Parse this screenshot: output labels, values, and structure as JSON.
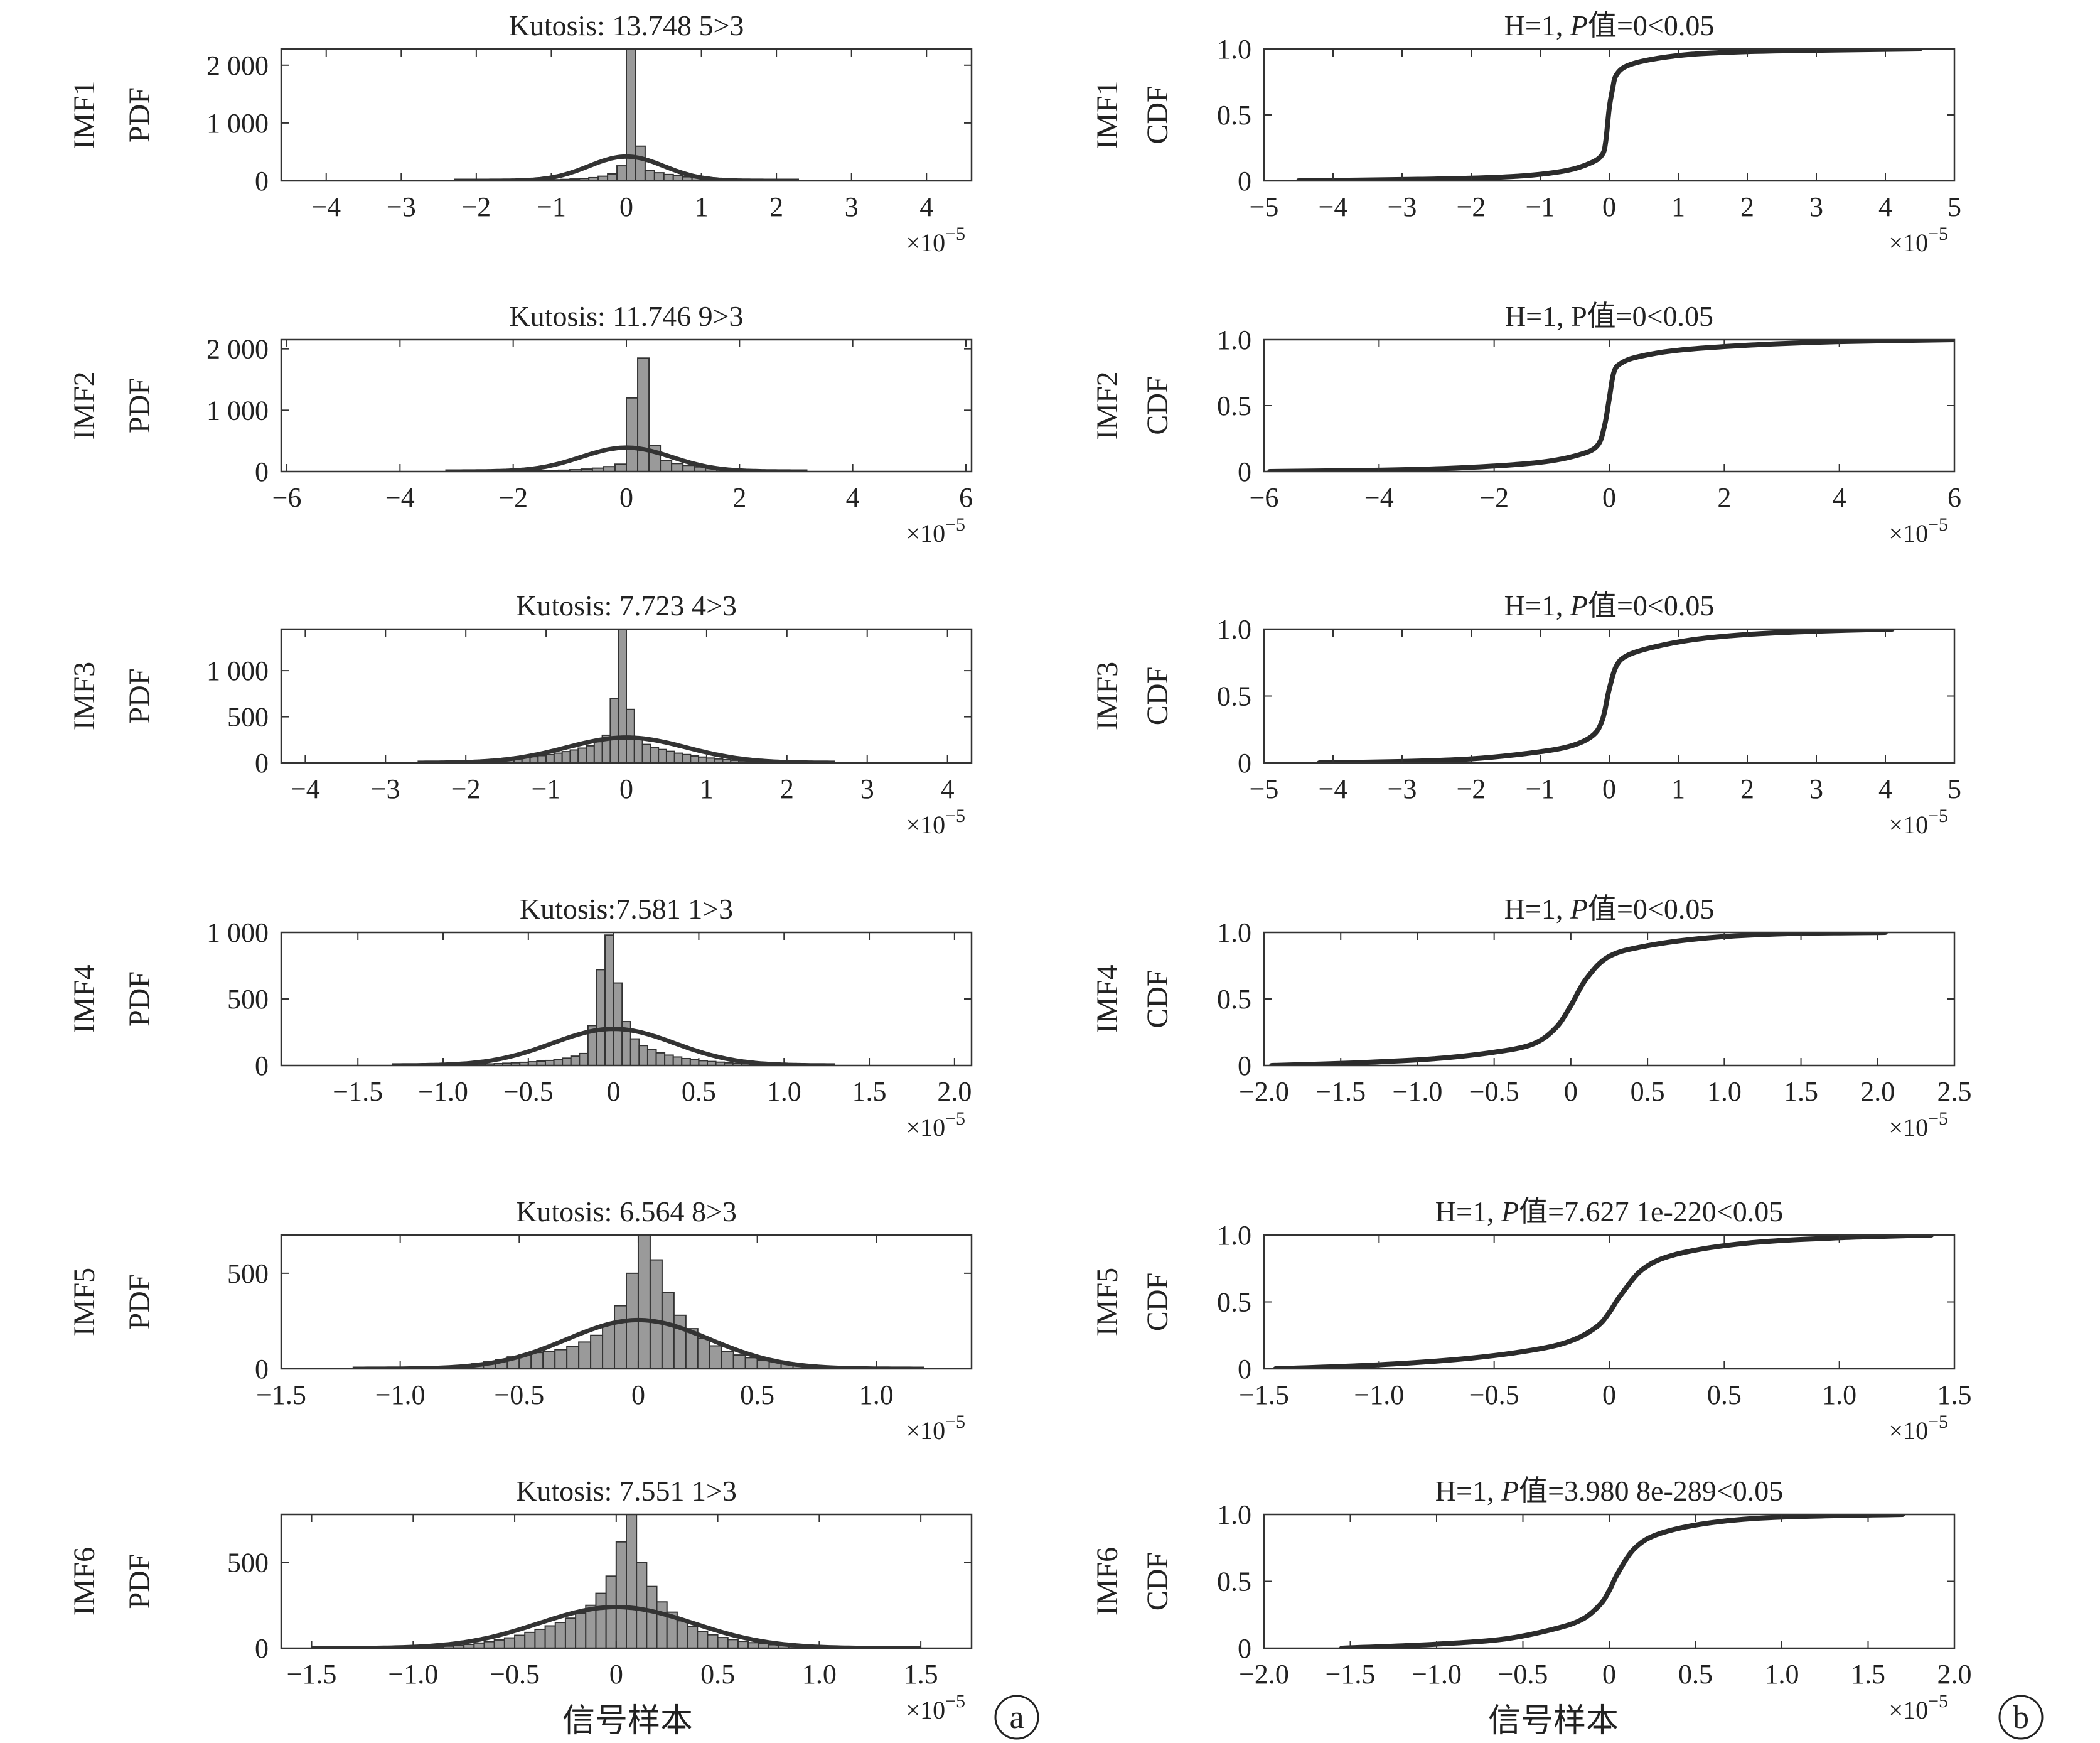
{
  "figure": {
    "x_axis_label": "信号样本",
    "panel_labels": [
      "a",
      "b"
    ],
    "x_exponent": "×10",
    "x_exponent_power": "−5"
  },
  "chart_data": [
    {
      "type": "bar",
      "column": "a",
      "imf": "IMF1",
      "ylabel": "PDF",
      "title": "Kutosis: 13.748 5>3",
      "xlim": [
        -4.6,
        4.6
      ],
      "ylim": [
        0,
        2280
      ],
      "xticks": [
        -4,
        -3,
        -2,
        -1,
        0,
        1,
        2,
        3,
        4
      ],
      "xtick_labels": [
        "−4",
        "−3",
        "−2",
        "−1",
        "0",
        "1",
        "2",
        "3",
        "4"
      ],
      "yticks": [
        0,
        1000,
        2000
      ],
      "ytick_labels": [
        "0",
        "1 000",
        "2 000"
      ],
      "hist": {
        "start": -2.0,
        "width": 0.125,
        "values": [
          2,
          3,
          4,
          6,
          8,
          10,
          13,
          16,
          20,
          25,
          32,
          40,
          55,
          80,
          120,
          260,
          2280,
          600,
          180,
          140,
          110,
          90,
          70,
          55,
          45,
          36,
          28,
          22,
          18,
          14,
          12,
          10
        ]
      },
      "fit": {
        "peak": 420,
        "sigma": 0.5,
        "range": [
          -2.3,
          2.3
        ]
      }
    },
    {
      "type": "bar",
      "column": "a",
      "imf": "IMF2",
      "ylabel": "PDF",
      "title": "Kutosis: 11.746 9>3",
      "xlim": [
        -6.1,
        6.1
      ],
      "ylim": [
        0,
        2150
      ],
      "xticks": [
        -6,
        -4,
        -2,
        0,
        2,
        4,
        6
      ],
      "xtick_labels": [
        "−6",
        "−4",
        "−2",
        "0",
        "2",
        "4",
        "6"
      ],
      "yticks": [
        0,
        1000,
        2000
      ],
      "ytick_labels": [
        "0",
        "1 000",
        "2 000"
      ],
      "hist": {
        "start": -2.6,
        "width": 0.2,
        "values": [
          2,
          3,
          4,
          6,
          8,
          12,
          16,
          22,
          30,
          40,
          55,
          80,
          120,
          1200,
          1850,
          420,
          180,
          130,
          100,
          75,
          55,
          40,
          30,
          22,
          16,
          12
        ]
      },
      "fit": {
        "peak": 390,
        "sigma": 0.8,
        "range": [
          -3.2,
          3.2
        ]
      }
    },
    {
      "type": "bar",
      "column": "a",
      "imf": "IMF3",
      "ylabel": "PDF",
      "title": "Kutosis: 7.723 4>3",
      "xlim": [
        -4.3,
        4.3
      ],
      "ylim": [
        0,
        1450
      ],
      "xticks": [
        -4,
        -3,
        -2,
        -1,
        0,
        1,
        2,
        3,
        4
      ],
      "xtick_labels": [
        "−4",
        "−3",
        "−2",
        "−1",
        "0",
        "1",
        "2",
        "3",
        "4"
      ],
      "yticks": [
        0,
        500,
        1000
      ],
      "ytick_labels": [
        "0",
        "500",
        "1 000"
      ],
      "hist": {
        "start": -2.6,
        "width": 0.1,
        "values": [
          3,
          4,
          5,
          7,
          9,
          11,
          14,
          18,
          22,
          27,
          33,
          40,
          48,
          57,
          67,
          78,
          90,
          105,
          122,
          140,
          160,
          185,
          230,
          300,
          700,
          1450,
          580,
          260,
          200,
          170,
          145,
          125,
          105,
          90,
          75,
          63,
          52,
          43,
          35,
          28,
          22,
          18,
          14,
          11,
          9,
          7,
          5,
          4,
          3,
          2,
          2,
          1
        ]
      },
      "fit": {
        "peak": 275,
        "sigma": 0.75,
        "range": [
          -2.6,
          2.6
        ]
      }
    },
    {
      "type": "bar",
      "column": "a",
      "imf": "IMF4",
      "ylabel": "PDF",
      "title": "Kutosis:7.581 1>3",
      "xlim": [
        -1.95,
        2.1
      ],
      "ylim": [
        0,
        1000
      ],
      "xticks": [
        -1.5,
        -1.0,
        -0.5,
        0,
        0.5,
        1.0,
        1.5,
        2.0
      ],
      "xtick_labels": [
        "−1.5",
        "−1.0",
        "−0.5",
        "0",
        "0.5",
        "1.0",
        "1.5",
        "2.0"
      ],
      "yticks": [
        0,
        500,
        1000
      ],
      "ytick_labels": [
        "0",
        "500",
        "1 000"
      ],
      "hist": {
        "start": -1.1,
        "width": 0.05,
        "values": [
          2,
          3,
          4,
          5,
          6,
          8,
          10,
          12,
          14,
          17,
          20,
          24,
          28,
          33,
          38,
          45,
          55,
          70,
          90,
          300,
          720,
          980,
          620,
          330,
          200,
          150,
          120,
          95,
          78,
          64,
          52,
          43,
          36,
          30,
          25,
          20,
          16,
          13,
          10,
          8,
          6,
          5,
          4,
          3
        ]
      },
      "fit": {
        "peak": 275,
        "sigma": 0.36,
        "range": [
          -1.3,
          1.3
        ]
      }
    },
    {
      "type": "bar",
      "column": "a",
      "imf": "IMF5",
      "ylabel": "PDF",
      "title": "Kutosis: 6.564 8>3",
      "xlim": [
        -1.5,
        1.4
      ],
      "ylim": [
        0,
        700
      ],
      "xticks": [
        -1.5,
        -1.0,
        -0.5,
        0,
        0.5,
        1.0
      ],
      "xtick_labels": [
        "−1.5",
        "−1.0",
        "−0.5",
        "0",
        "0.5",
        "1.0"
      ],
      "yticks": [
        0,
        500
      ],
      "ytick_labels": [
        "0",
        "500"
      ],
      "hist": {
        "start": -0.95,
        "width": 0.05,
        "values": [
          3,
          5,
          8,
          12,
          18,
          26,
          36,
          48,
          62,
          75,
          85,
          90,
          100,
          115,
          140,
          175,
          230,
          330,
          500,
          700,
          570,
          400,
          280,
          210,
          160,
          120,
          92,
          72,
          58,
          46,
          37,
          30,
          24,
          19,
          15,
          11,
          8,
          6
        ]
      },
      "fit": {
        "peak": 255,
        "sigma": 0.3,
        "range": [
          -1.2,
          1.2
        ]
      }
    },
    {
      "type": "bar",
      "column": "a",
      "imf": "IMF6",
      "ylabel": "PDF",
      "title": "Kutosis: 7.551 1>3",
      "xlim": [
        -1.65,
        1.75
      ],
      "ylim": [
        0,
        780
      ],
      "xticks": [
        -1.5,
        -1.0,
        -0.5,
        0,
        0.5,
        1.0,
        1.5
      ],
      "xtick_labels": [
        "−1.5",
        "−1.0",
        "−0.5",
        "0",
        "0.5",
        "1.0",
        "1.5"
      ],
      "yticks": [
        0,
        500
      ],
      "ytick_labels": [
        "0",
        "500"
      ],
      "hist": {
        "start": -1.0,
        "width": 0.05,
        "values": [
          4,
          6,
          8,
          12,
          16,
          22,
          30,
          38,
          48,
          60,
          75,
          92,
          110,
          130,
          150,
          175,
          205,
          250,
          320,
          420,
          620,
          780,
          500,
          360,
          270,
          210,
          160,
          125,
          98,
          78,
          62,
          50,
          40,
          32,
          26,
          20,
          15,
          11,
          8,
          6
        ]
      },
      "fit": {
        "peak": 240,
        "sigma": 0.38,
        "range": [
          -1.5,
          1.5
        ]
      }
    },
    {
      "type": "line",
      "column": "b",
      "imf": "IMF1",
      "ylabel": "CDF",
      "title_prefix": "H=1, ",
      "title_p": "P",
      "title_suffix": "值=0<0.05",
      "xlim": [
        -5,
        5
      ],
      "ylim": [
        0,
        1.0
      ],
      "xticks": [
        -5,
        -4,
        -3,
        -2,
        -1,
        0,
        1,
        2,
        3,
        4,
        5
      ],
      "xtick_labels": [
        "−5",
        "−4",
        "−3",
        "−2",
        "−1",
        "0",
        "1",
        "2",
        "3",
        "4",
        "5"
      ],
      "yticks": [
        0,
        0.5,
        1.0
      ],
      "ytick_labels": [
        "0",
        "0.5",
        "1.0"
      ],
      "cdf": {
        "x": [
          -4.5,
          -3,
          -2,
          -1.2,
          -0.6,
          -0.25,
          -0.1,
          -0.05,
          0,
          0.05,
          0.1,
          0.25,
          0.6,
          1.2,
          2,
          3,
          4.5
        ],
        "y": [
          0.0,
          0.01,
          0.02,
          0.04,
          0.08,
          0.14,
          0.2,
          0.3,
          0.55,
          0.7,
          0.8,
          0.87,
          0.92,
          0.96,
          0.98,
          0.99,
          1.0
        ]
      }
    },
    {
      "type": "line",
      "column": "b",
      "imf": "IMF2",
      "ylabel": "CDF",
      "title_prefix": "H=1, P",
      "title_p": "",
      "title_suffix": "值=0<0.05",
      "xlim": [
        -6,
        6
      ],
      "ylim": [
        0,
        1.0
      ],
      "xticks": [
        -6,
        -4,
        -2,
        0,
        2,
        4,
        6
      ],
      "xtick_labels": [
        "−6",
        "−4",
        "−2",
        "0",
        "2",
        "4",
        "6"
      ],
      "yticks": [
        0,
        0.5,
        1.0
      ],
      "ytick_labels": [
        "0",
        "0.5",
        "1.0"
      ],
      "cdf": {
        "x": [
          -5.9,
          -4,
          -2.5,
          -1.2,
          -0.5,
          -0.2,
          -0.08,
          0,
          0.08,
          0.2,
          0.5,
          1.2,
          2.5,
          4,
          6
        ],
        "y": [
          0.0,
          0.01,
          0.03,
          0.07,
          0.13,
          0.2,
          0.35,
          0.55,
          0.75,
          0.82,
          0.87,
          0.92,
          0.96,
          0.985,
          1.0
        ]
      }
    },
    {
      "type": "line",
      "column": "b",
      "imf": "IMF3",
      "ylabel": "CDF",
      "title_prefix": "H=1, ",
      "title_p": "P",
      "title_suffix": "值=0<0.05",
      "xlim": [
        -5,
        5
      ],
      "ylim": [
        0,
        1.0
      ],
      "xticks": [
        -5,
        -4,
        -3,
        -2,
        -1,
        0,
        1,
        2,
        3,
        4,
        5
      ],
      "xtick_labels": [
        "−5",
        "−4",
        "−3",
        "−2",
        "−1",
        "0",
        "1",
        "2",
        "3",
        "4",
        "5"
      ],
      "yticks": [
        0,
        0.5,
        1.0
      ],
      "ytick_labels": [
        "0",
        "0.5",
        "1.0"
      ],
      "cdf": {
        "x": [
          -4.2,
          -3,
          -2,
          -1.2,
          -0.6,
          -0.25,
          -0.1,
          0,
          0.1,
          0.25,
          0.6,
          1.2,
          2,
          3,
          4.1
        ],
        "y": [
          0.0,
          0.01,
          0.03,
          0.07,
          0.12,
          0.2,
          0.32,
          0.55,
          0.72,
          0.8,
          0.86,
          0.92,
          0.96,
          0.985,
          1.0
        ]
      }
    },
    {
      "type": "line",
      "column": "b",
      "imf": "IMF4",
      "ylabel": "CDF",
      "title_prefix": "H=1, ",
      "title_p": "P",
      "title_suffix": "值=0<0.05",
      "xlim": [
        -2,
        2.5
      ],
      "ylim": [
        0,
        1.0
      ],
      "xticks": [
        -2.0,
        -1.5,
        -1.0,
        -0.5,
        0,
        0.5,
        1.0,
        1.5,
        2.0,
        2.5
      ],
      "xtick_labels": [
        "−2.0",
        "−1.5",
        "−1.0",
        "−0.5",
        "0",
        "0.5",
        "1.0",
        "1.5",
        "2.0",
        "2.5"
      ],
      "yticks": [
        0,
        0.5,
        1.0
      ],
      "ytick_labels": [
        "0",
        "0.5",
        "1.0"
      ],
      "cdf": {
        "x": [
          -1.95,
          -1.4,
          -0.9,
          -0.5,
          -0.25,
          -0.1,
          0,
          0.1,
          0.25,
          0.5,
          0.9,
          1.4,
          2.05
        ],
        "y": [
          0.0,
          0.02,
          0.05,
          0.1,
          0.16,
          0.28,
          0.45,
          0.65,
          0.82,
          0.9,
          0.96,
          0.99,
          1.0
        ]
      }
    },
    {
      "type": "line",
      "column": "b",
      "imf": "IMF5",
      "ylabel": "CDF",
      "title_prefix": "H=1, ",
      "title_p": "P",
      "title_suffix": "值=7.627 1e-220<0.05",
      "xlim": [
        -1.5,
        1.5
      ],
      "ylim": [
        0,
        1.0
      ],
      "xticks": [
        -1.5,
        -1.0,
        -0.5,
        0,
        0.5,
        1.0,
        1.5
      ],
      "xtick_labels": [
        "−1.5",
        "−1.0",
        "−0.5",
        "0",
        "0.5",
        "1.0",
        "1.5"
      ],
      "yticks": [
        0,
        0.5,
        1.0
      ],
      "ytick_labels": [
        "0",
        "0.5",
        "1.0"
      ],
      "cdf": {
        "x": [
          -1.45,
          -1.0,
          -0.6,
          -0.3,
          -0.15,
          -0.05,
          0,
          0.05,
          0.15,
          0.3,
          0.6,
          1.0,
          1.4
        ],
        "y": [
          0.0,
          0.03,
          0.08,
          0.15,
          0.22,
          0.32,
          0.42,
          0.55,
          0.75,
          0.86,
          0.94,
          0.98,
          1.0
        ]
      }
    },
    {
      "type": "line",
      "column": "b",
      "imf": "IMF6",
      "ylabel": "CDF",
      "title_prefix": "H=1, ",
      "title_p": "P",
      "title_suffix": "值=3.980 8e-289<0.05",
      "xlim": [
        -2,
        2
      ],
      "ylim": [
        0,
        1.0
      ],
      "xticks": [
        -2.0,
        -1.5,
        -1.0,
        -0.5,
        0,
        0.5,
        1.0,
        1.5,
        2.0
      ],
      "xtick_labels": [
        "−2.0",
        "−1.5",
        "−1.0",
        "−0.5",
        "0",
        "0.5",
        "1.0",
        "1.5",
        "2.0"
      ],
      "yticks": [
        0,
        0.5,
        1.0
      ],
      "ytick_labels": [
        "0",
        "0.5",
        "1.0"
      ],
      "cdf": {
        "x": [
          -1.55,
          -1.0,
          -0.6,
          -0.3,
          -0.15,
          -0.05,
          0,
          0.05,
          0.15,
          0.3,
          0.6,
          1.0,
          1.7
        ],
        "y": [
          0.0,
          0.03,
          0.07,
          0.15,
          0.22,
          0.33,
          0.43,
          0.56,
          0.75,
          0.86,
          0.94,
          0.98,
          1.0
        ]
      }
    }
  ]
}
